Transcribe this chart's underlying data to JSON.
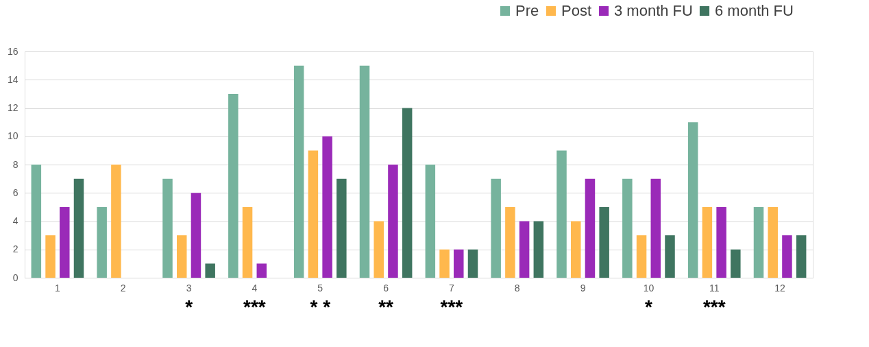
{
  "chart_data": {
    "type": "bar",
    "categories": [
      "1",
      "2",
      "3",
      "4",
      "5",
      "6",
      "7",
      "8",
      "9",
      "10",
      "11",
      "12"
    ],
    "series": [
      {
        "name": "Pre",
        "color": "#76b39d",
        "values": [
          8,
          5,
          7,
          13,
          15,
          15,
          8,
          7,
          9,
          7,
          11,
          5
        ]
      },
      {
        "name": "Post",
        "color": "#ffb84d",
        "values": [
          3,
          8,
          3,
          5,
          9,
          4,
          2,
          5,
          4,
          3,
          5,
          5
        ]
      },
      {
        "name": "3 month FU",
        "color": "#9a2ab8",
        "values": [
          5,
          null,
          6,
          1,
          10,
          8,
          2,
          4,
          7,
          7,
          5,
          3
        ]
      },
      {
        "name": "6 month FU",
        "color": "#3f7560",
        "values": [
          7,
          null,
          1,
          null,
          7,
          12,
          2,
          4,
          5,
          3,
          2,
          3
        ]
      }
    ],
    "ylim": [
      0,
      16
    ],
    "yticks": [
      0,
      2,
      4,
      6,
      8,
      10,
      12,
      14,
      16
    ],
    "grid": "y",
    "legend": "top right",
    "annotations": [
      "*",
      "***",
      "* *",
      "**",
      "***",
      "*",
      "***"
    ]
  }
}
